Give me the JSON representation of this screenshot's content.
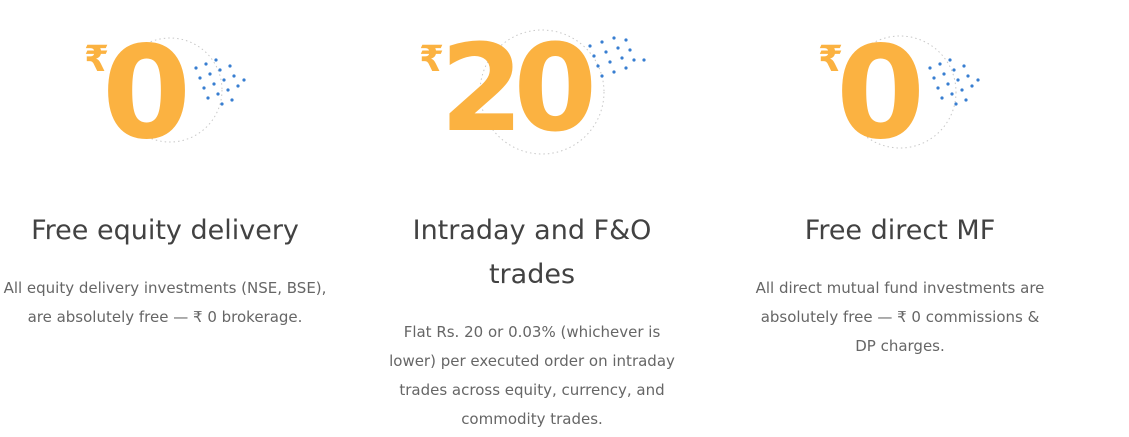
{
  "colors": {
    "accent_orange": "#fbb241",
    "dot_blue": "#387ed1",
    "title_text": "#424242",
    "body_text": "#666666"
  },
  "pricing_cards": [
    {
      "currency_symbol": "₹",
      "amount": "0",
      "title": "Free equity delivery",
      "description": "All equity delivery investments (NSE, BSE), are absolutely free — ₹ 0 brokerage."
    },
    {
      "currency_symbol": "₹",
      "amount": "20",
      "title": "Intraday and F&O trades",
      "description": "Flat Rs. 20 or 0.03% (whichever is lower) per executed order on intraday trades across equity, currency, and commodity trades."
    },
    {
      "currency_symbol": "₹",
      "amount": "0",
      "title": "Free direct MF",
      "description": "All direct mutual fund investments are absolutely free — ₹ 0 commissions & DP charges."
    }
  ]
}
